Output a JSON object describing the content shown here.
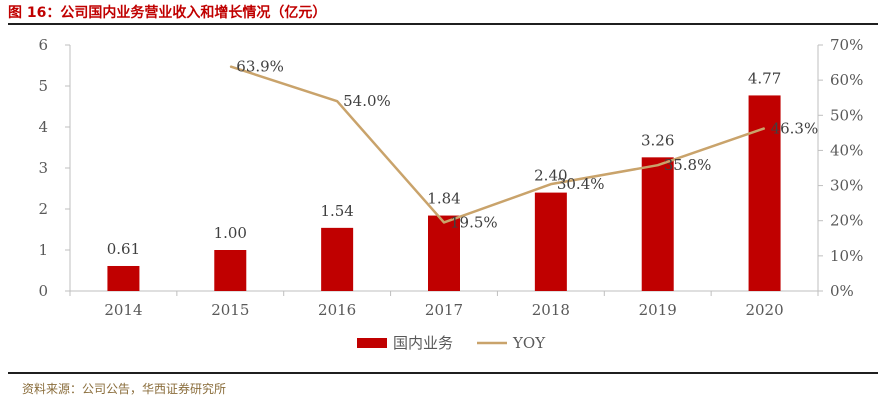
{
  "header": {
    "title": "图 16：公司国内业务营业收入和增长情况（亿元）"
  },
  "source": {
    "text": "资料来源：公司公告，华西证券研究所"
  },
  "chart_data": {
    "type": "bar",
    "categories": [
      "2014",
      "2015",
      "2016",
      "2017",
      "2018",
      "2019",
      "2020"
    ],
    "series": [
      {
        "name": "国内业务",
        "type": "bar",
        "axis": "left",
        "color": "#c00000",
        "values": [
          0.61,
          1.0,
          1.54,
          1.84,
          2.4,
          3.26,
          4.77
        ],
        "labels": [
          "0.61",
          "1.00",
          "1.54",
          "1.84",
          "2.40",
          "3.26",
          "4.77"
        ]
      },
      {
        "name": "YOY",
        "type": "line",
        "axis": "right",
        "color": "#c9a36b",
        "values": [
          null,
          63.9,
          54.0,
          19.5,
          30.4,
          35.8,
          46.3
        ],
        "labels": [
          "",
          "63.9%",
          "54.0%",
          "19.5%",
          "30.4%",
          "35.8%",
          "46.3%"
        ]
      }
    ],
    "y_left": {
      "ylim": [
        0,
        6
      ],
      "ticks": [
        "0",
        "1",
        "2",
        "3",
        "4",
        "5",
        "6"
      ]
    },
    "y_right": {
      "ylim": [
        0,
        70
      ],
      "ticks": [
        "0%",
        "10%",
        "20%",
        "30%",
        "40%",
        "50%",
        "60%",
        "70%"
      ]
    },
    "legend_position": "bottom",
    "grid": false
  }
}
